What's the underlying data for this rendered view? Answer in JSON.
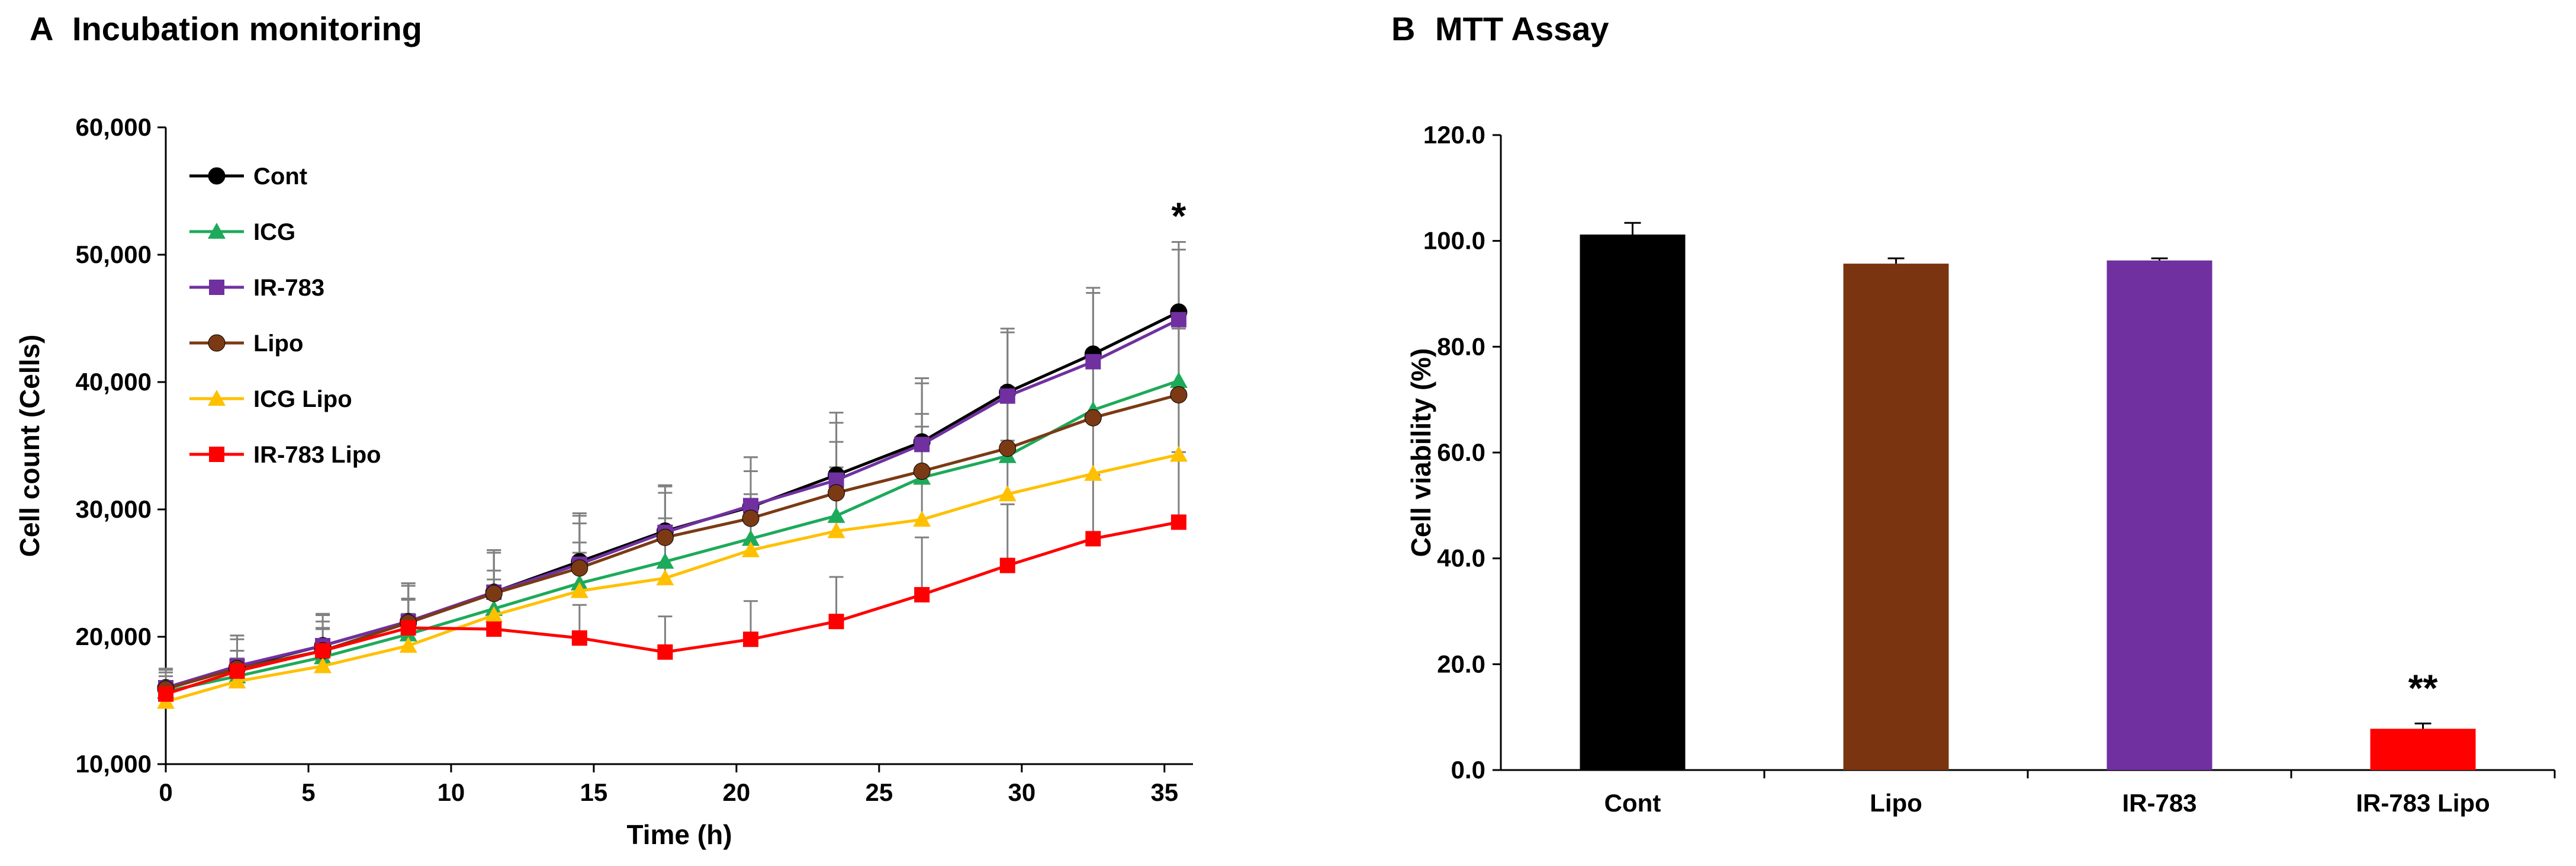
{
  "chart_data": [
    {
      "type": "line",
      "panel_label": "A",
      "title": "Incubation monitoring",
      "xlabel": "Time (h)",
      "ylabel": "Cell count (Cells)",
      "xlim": [
        0,
        36
      ],
      "ylim": [
        10000,
        60000
      ],
      "x_ticks": [
        0,
        5,
        10,
        15,
        20,
        25,
        30,
        35
      ],
      "y_ticks": [
        10000,
        20000,
        30000,
        40000,
        50000,
        60000
      ],
      "y_tick_labels": [
        "10,000",
        "20,000",
        "30,000",
        "40,000",
        "50,000",
        "60,000"
      ],
      "x_tick_labels": [
        "0",
        "5",
        "10",
        "15",
        "20",
        "25",
        "30",
        "35"
      ],
      "x": [
        0,
        2.5,
        5.5,
        8.5,
        11.5,
        14.5,
        17.5,
        20.5,
        23.5,
        26.5,
        29.5,
        32.5,
        35.5
      ],
      "legend_position": "top-left",
      "grid": false,
      "series": [
        {
          "name": "Cont",
          "color": "#000000",
          "marker": "circle",
          "values": [
            16000,
            17600,
            19300,
            21200,
            23500,
            25900,
            28300,
            30200,
            32700,
            35300,
            39200,
            42200,
            45500
          ],
          "errors": [
            1500,
            2500,
            2500,
            3000,
            3300,
            3800,
            3600,
            3900,
            4900,
            5000,
            5000,
            5200,
            5500
          ]
        },
        {
          "name": "ICG",
          "color": "#1DAA5A",
          "marker": "triangle",
          "values": [
            15700,
            16900,
            18400,
            20200,
            22200,
            24200,
            25900,
            27700,
            29500,
            32500,
            34200,
            37800,
            40100
          ],
          "errors": [
            1200,
            2000,
            2200,
            2800,
            3000,
            3200,
            3400,
            3500,
            3800,
            4000,
            4200,
            4500,
            4800
          ]
        },
        {
          "name": "IR-783",
          "color": "#7030A0",
          "marker": "square",
          "values": [
            16000,
            17700,
            19300,
            21200,
            23500,
            25700,
            28200,
            30300,
            32300,
            35100,
            38900,
            41600,
            44900
          ],
          "errors": [
            1400,
            2400,
            2400,
            3000,
            3300,
            3800,
            3600,
            3800,
            4500,
            4800,
            5000,
            5400,
            5500
          ]
        },
        {
          "name": "Lipo",
          "color": "#7B3A14",
          "marker": "circle",
          "values": [
            15900,
            17500,
            18900,
            21100,
            23400,
            25400,
            27800,
            29300,
            31300,
            33000,
            34800,
            37200,
            39000
          ],
          "errors": [
            1300,
            2300,
            2300,
            2900,
            3200,
            3500,
            3500,
            3700,
            4000,
            4500,
            4800,
            5000,
            5200
          ]
        },
        {
          "name": "ICG Lipo",
          "color": "#FFC000",
          "marker": "triangle",
          "values": [
            14900,
            16500,
            17700,
            19300,
            21700,
            23600,
            24600,
            26800,
            28300,
            29200,
            31200,
            32800,
            34300
          ],
          "errors": [
            1000,
            1800,
            2000,
            2500,
            2800,
            3000,
            3200,
            3400,
            3600,
            4000,
            4200,
            4500,
            4800
          ]
        },
        {
          "name": "IR-783 Lipo",
          "color": "#FF0000",
          "marker": "square",
          "values": [
            15500,
            17300,
            18900,
            20700,
            20600,
            19900,
            18800,
            19800,
            21200,
            23300,
            25600,
            27700,
            29000
          ],
          "errors": [
            1000,
            1600,
            1800,
            2200,
            2400,
            2600,
            2800,
            3000,
            3500,
            4500,
            4800,
            5000,
            5500
          ]
        }
      ],
      "annotations": [
        {
          "text": "*",
          "x": 35.5
        }
      ]
    },
    {
      "type": "bar",
      "panel_label": "B",
      "title": "MTT Assay",
      "xlabel": "",
      "ylabel": "Cell viability (%)",
      "ylim": [
        0,
        120
      ],
      "y_ticks": [
        0,
        20,
        40,
        60,
        80,
        100,
        120
      ],
      "y_tick_labels": [
        "0.0",
        "20.0",
        "40.0",
        "60.0",
        "80.0",
        "100.0",
        "120.0"
      ],
      "grid": false,
      "categories": [
        "Cont",
        "Lipo",
        "IR-783",
        "IR-783 Lipo"
      ],
      "values": [
        101.2,
        95.7,
        96.3,
        7.8
      ],
      "errors": [
        2.2,
        1.0,
        0.4,
        1.0
      ],
      "colors": [
        "#000000",
        "#7B3410",
        "#7030A0",
        "#FF0000"
      ],
      "annotations": [
        {
          "text": "**",
          "category": "IR-783 Lipo"
        }
      ]
    }
  ]
}
